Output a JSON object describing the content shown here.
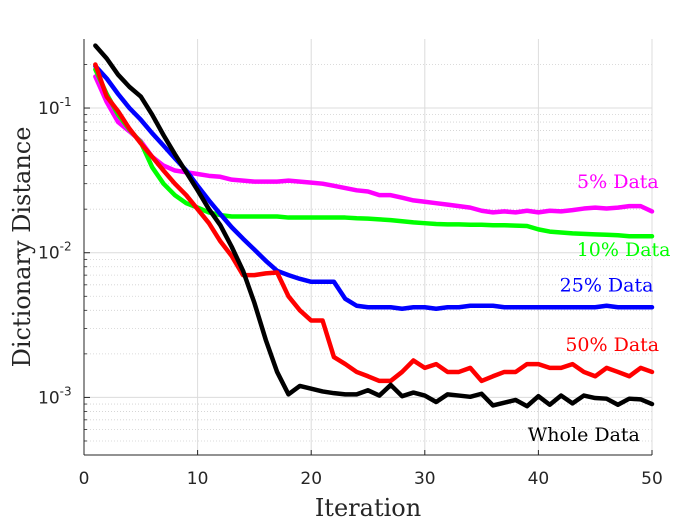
{
  "chart_data": {
    "type": "line",
    "title": "",
    "xlabel": "Iteration",
    "ylabel": "Dictionary Distance",
    "xscale": "linear",
    "yscale": "log",
    "xlim": [
      0,
      50
    ],
    "ylim": [
      0.0004,
      0.3
    ],
    "grid": true,
    "x_ticks": [
      0,
      10,
      20,
      30,
      40,
      50
    ],
    "y_ticks": [
      {
        "value": 0.1,
        "base": "10",
        "exp": "-1"
      },
      {
        "value": 0.01,
        "base": "10",
        "exp": "-2"
      },
      {
        "value": 0.001,
        "base": "10",
        "exp": "-3"
      }
    ],
    "x": [
      1,
      2,
      3,
      4,
      5,
      6,
      7,
      8,
      9,
      10,
      11,
      12,
      13,
      14,
      15,
      16,
      17,
      18,
      19,
      20,
      21,
      22,
      23,
      24,
      25,
      26,
      27,
      28,
      29,
      30,
      31,
      32,
      33,
      34,
      35,
      36,
      37,
      38,
      39,
      40,
      41,
      42,
      43,
      44,
      45,
      46,
      47,
      48,
      49,
      50
    ],
    "series": [
      {
        "name": "5% Data",
        "color": "#ff00ff",
        "label": "5% Data",
        "label_at": [
          47,
          0.028
        ],
        "values": [
          0.165,
          0.11,
          0.08,
          0.069,
          0.059,
          0.046,
          0.04,
          0.037,
          0.036,
          0.035,
          0.034,
          0.0335,
          0.032,
          0.0315,
          0.031,
          0.031,
          0.031,
          0.0315,
          0.031,
          0.0305,
          0.03,
          0.029,
          0.028,
          0.027,
          0.0265,
          0.025,
          0.025,
          0.024,
          0.023,
          0.0225,
          0.022,
          0.0215,
          0.021,
          0.0205,
          0.0195,
          0.019,
          0.0193,
          0.019,
          0.0195,
          0.019,
          0.0195,
          0.0193,
          0.0197,
          0.0202,
          0.0205,
          0.0202,
          0.0205,
          0.021,
          0.021,
          0.0193
        ]
      },
      {
        "name": "10% Data",
        "color": "#00ff00",
        "label": "10% Data",
        "label_at": [
          47.5,
          0.0095
        ],
        "values": [
          0.185,
          0.125,
          0.09,
          0.071,
          0.058,
          0.039,
          0.03,
          0.025,
          0.022,
          0.0205,
          0.019,
          0.0182,
          0.0178,
          0.0178,
          0.0178,
          0.0178,
          0.0178,
          0.0175,
          0.0175,
          0.0175,
          0.0175,
          0.0175,
          0.0175,
          0.0173,
          0.0172,
          0.017,
          0.0168,
          0.0165,
          0.0162,
          0.016,
          0.0158,
          0.0157,
          0.0157,
          0.0156,
          0.0156,
          0.0155,
          0.0155,
          0.0154,
          0.0153,
          0.0145,
          0.014,
          0.0138,
          0.0136,
          0.0135,
          0.0134,
          0.0133,
          0.0132,
          0.013,
          0.013,
          0.013
        ]
      },
      {
        "name": "25% Data",
        "color": "#0000ff",
        "label": "25% Data",
        "label_at": [
          46,
          0.0054
        ],
        "values": [
          0.195,
          0.16,
          0.125,
          0.1,
          0.083,
          0.067,
          0.055,
          0.045,
          0.037,
          0.029,
          0.023,
          0.0185,
          0.015,
          0.0125,
          0.0105,
          0.0088,
          0.0075,
          0.007,
          0.0066,
          0.0063,
          0.0063,
          0.0063,
          0.0048,
          0.0043,
          0.0042,
          0.0042,
          0.0042,
          0.0041,
          0.0042,
          0.0042,
          0.0041,
          0.0042,
          0.0042,
          0.0043,
          0.0043,
          0.0043,
          0.0042,
          0.0042,
          0.0042,
          0.0042,
          0.0042,
          0.0042,
          0.0042,
          0.0042,
          0.0042,
          0.0043,
          0.0042,
          0.0042,
          0.0042,
          0.0042
        ]
      },
      {
        "name": "50% Data",
        "color": "#ff0000",
        "label": "50% Data",
        "label_at": [
          46.5,
          0.0021
        ],
        "values": [
          0.2,
          0.12,
          0.095,
          0.072,
          0.057,
          0.046,
          0.037,
          0.03,
          0.025,
          0.02,
          0.016,
          0.012,
          0.0095,
          0.007,
          0.007,
          0.0072,
          0.0073,
          0.005,
          0.004,
          0.0034,
          0.0034,
          0.0019,
          0.0017,
          0.0015,
          0.0014,
          0.0013,
          0.0013,
          0.0015,
          0.0018,
          0.0016,
          0.0017,
          0.0015,
          0.0015,
          0.0016,
          0.0013,
          0.0014,
          0.0015,
          0.0015,
          0.0017,
          0.0017,
          0.0016,
          0.0016,
          0.0017,
          0.0015,
          0.0014,
          0.0016,
          0.0015,
          0.0014,
          0.0016,
          0.0015
        ]
      },
      {
        "name": "Whole Data",
        "color": "#000000",
        "label": "Whole Data",
        "label_at": [
          44,
          0.0005
        ],
        "values": [
          0.27,
          0.22,
          0.17,
          0.14,
          0.12,
          0.09,
          0.065,
          0.048,
          0.036,
          0.027,
          0.02,
          0.0155,
          0.011,
          0.0075,
          0.0045,
          0.0025,
          0.0015,
          0.00105,
          0.0012,
          0.00115,
          0.0011,
          0.00107,
          0.00105,
          0.00105,
          0.00112,
          0.00103,
          0.00122,
          0.00102,
          0.00108,
          0.00103,
          0.00093,
          0.00105,
          0.00103,
          0.00101,
          0.00106,
          0.00088,
          0.00092,
          0.00096,
          0.00087,
          0.00102,
          0.00089,
          0.00103,
          0.00091,
          0.00103,
          0.00099,
          0.00098,
          0.00089,
          0.00098,
          0.00097,
          0.0009
        ]
      }
    ]
  }
}
